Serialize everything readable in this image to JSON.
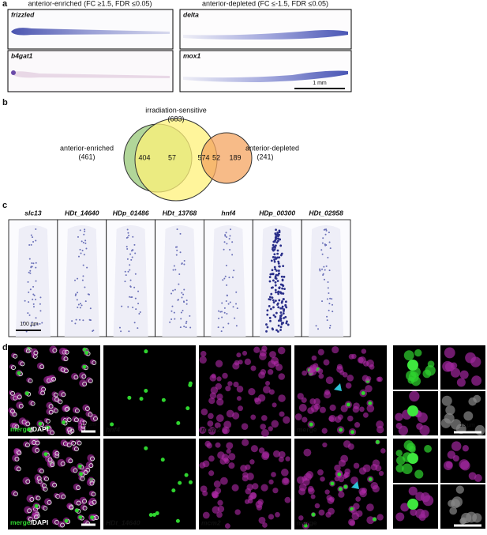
{
  "panel_a": {
    "label": "a",
    "left_heading": "anterior-enriched (FC ≥1.5, FDR ≤0.05)",
    "right_heading": "anterior-depleted (FC ≤-1.5, FDR ≤0.05)",
    "images": [
      "frizzled",
      "delta",
      "b4gat1",
      "mox1"
    ],
    "scale_bar": "1 mm"
  },
  "panel_b": {
    "label": "b",
    "sets": [
      {
        "name": "irradiation-sensitive",
        "total": "(683)"
      },
      {
        "name": "anterior-enriched",
        "total": "(461)"
      },
      {
        "name": "anterior-depleted",
        "total": "(241)"
      }
    ],
    "regions": [
      404,
      57,
      574,
      52,
      189
    ]
  },
  "panel_c": {
    "label": "c",
    "genes": [
      "slc13",
      "HDt_14640",
      "HDp_01486",
      "HDt_13768",
      "hnf4",
      "HDp_00300",
      "HDt_02958"
    ],
    "scale_bar": "100 µm"
  },
  "panel_d": {
    "label": "d",
    "rows": [
      {
        "merge": "merge",
        "dapi": "/DAPI",
        "marker": "hnf4",
        "mcm2": "mcm2",
        "merge_only": "merge",
        "scale_bar": "10 µm",
        "inset_scale_bar": "10 µm"
      },
      {
        "merge": "merge",
        "dapi": "/DAPI",
        "marker": "HDt_14640",
        "mcm2": "mcm2",
        "merge_only": "merge"
      }
    ]
  }
}
